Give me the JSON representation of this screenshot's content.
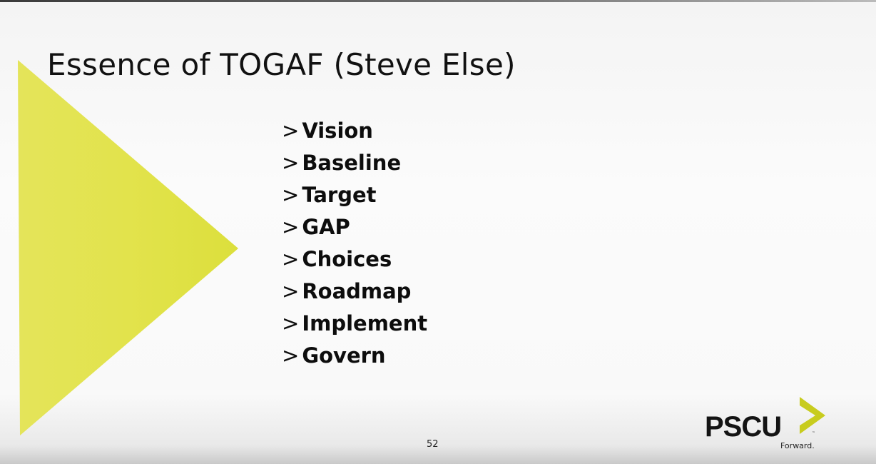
{
  "slide": {
    "title": "Essence of TOGAF (Steve Else)",
    "bullet_marker": ">",
    "bullets": [
      "Vision",
      "Baseline",
      "Target",
      "GAP",
      "Choices",
      "Roadmap",
      "Implement",
      "Govern"
    ],
    "page_number": "52"
  },
  "logo": {
    "name": "PSCU",
    "tagline": "Forward.",
    "trademark": "™"
  },
  "colors": {
    "triangle": "#e3e34a",
    "chevron": "#c8cc1e",
    "text": "#111111"
  },
  "icons": {
    "decoration": "yellow-triangle-shape",
    "logo_mark": "chevron-icon"
  }
}
